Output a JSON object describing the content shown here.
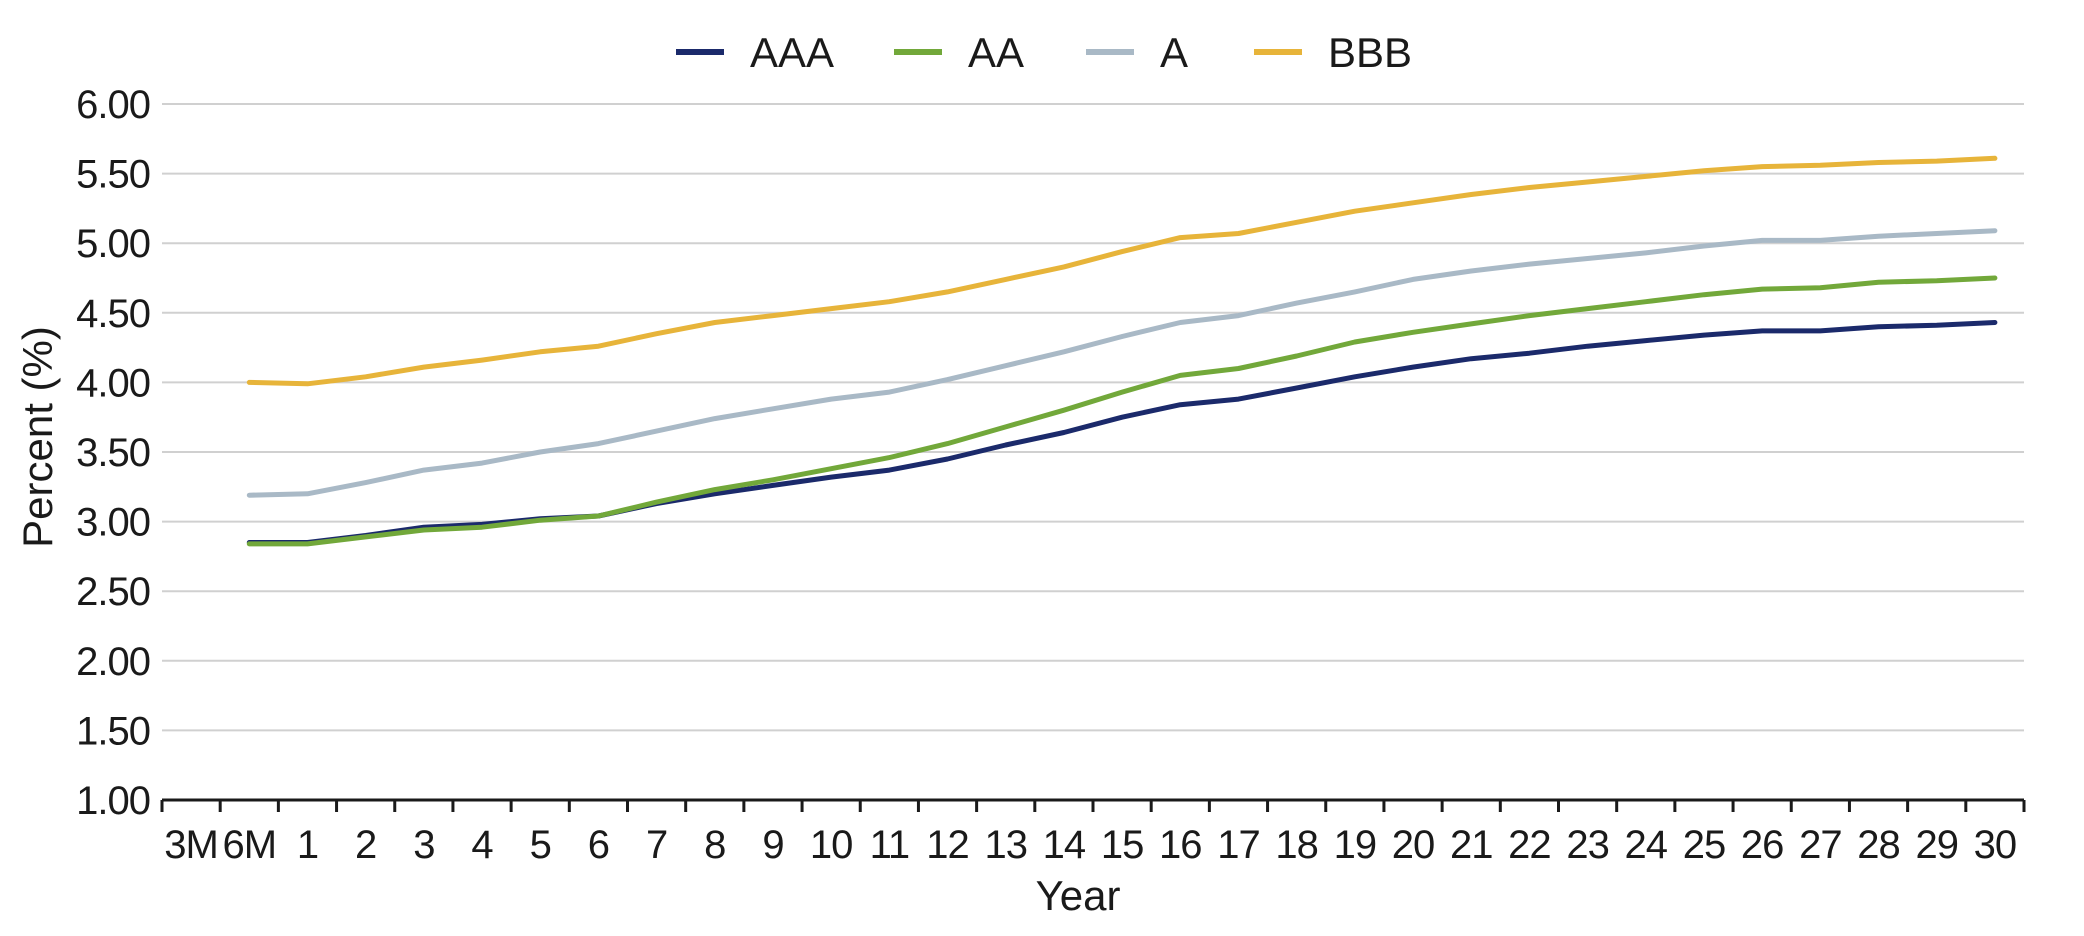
{
  "chart_data": {
    "type": "line",
    "xlabel": "Year",
    "ylabel": "Percent (%)",
    "categories": [
      "3M",
      "6M",
      "1",
      "2",
      "3",
      "4",
      "5",
      "6",
      "7",
      "8",
      "9",
      "10",
      "11",
      "12",
      "13",
      "14",
      "15",
      "16",
      "17",
      "18",
      "19",
      "20",
      "21",
      "22",
      "23",
      "24",
      "25",
      "26",
      "27",
      "28",
      "29",
      "30"
    ],
    "ylim": [
      1.0,
      6.0
    ],
    "yticks": [
      "1.00",
      "1.50",
      "2.00",
      "2.50",
      "3.00",
      "3.50",
      "4.00",
      "4.50",
      "5.00",
      "5.50",
      "6.00"
    ],
    "grid": "horizontal",
    "legend_position": "top-center",
    "series": [
      {
        "name": "AAA",
        "color": "#1b2a6b",
        "values": [
          null,
          2.85,
          2.85,
          2.9,
          2.96,
          2.98,
          3.02,
          3.04,
          3.13,
          3.2,
          3.26,
          3.32,
          3.37,
          3.45,
          3.55,
          3.64,
          3.75,
          3.84,
          3.88,
          3.96,
          4.04,
          4.11,
          4.17,
          4.21,
          4.26,
          4.3,
          4.34,
          4.37,
          4.37,
          4.4,
          4.41,
          4.43
        ]
      },
      {
        "name": "AA",
        "color": "#72a83a",
        "values": [
          null,
          2.84,
          2.84,
          2.89,
          2.94,
          2.96,
          3.01,
          3.04,
          3.14,
          3.23,
          3.3,
          3.38,
          3.46,
          3.56,
          3.68,
          3.8,
          3.93,
          4.05,
          4.1,
          4.19,
          4.29,
          4.36,
          4.42,
          4.48,
          4.53,
          4.58,
          4.63,
          4.67,
          4.68,
          4.72,
          4.73,
          4.75
        ]
      },
      {
        "name": "A",
        "color": "#a9b9c6",
        "values": [
          null,
          3.19,
          3.2,
          3.28,
          3.37,
          3.42,
          3.5,
          3.56,
          3.65,
          3.74,
          3.81,
          3.88,
          3.93,
          4.02,
          4.12,
          4.22,
          4.33,
          4.43,
          4.48,
          4.57,
          4.65,
          4.74,
          4.8,
          4.85,
          4.89,
          4.93,
          4.98,
          5.02,
          5.02,
          5.05,
          5.07,
          5.09
        ]
      },
      {
        "name": "BBB",
        "color": "#e7b43a",
        "values": [
          null,
          4.0,
          3.99,
          4.04,
          4.11,
          4.16,
          4.22,
          4.26,
          4.35,
          4.43,
          4.48,
          4.53,
          4.58,
          4.65,
          4.74,
          4.83,
          4.94,
          5.04,
          5.07,
          5.15,
          5.23,
          5.29,
          5.35,
          5.4,
          5.44,
          5.48,
          5.52,
          5.55,
          5.56,
          5.58,
          5.59,
          5.61
        ]
      }
    ]
  }
}
